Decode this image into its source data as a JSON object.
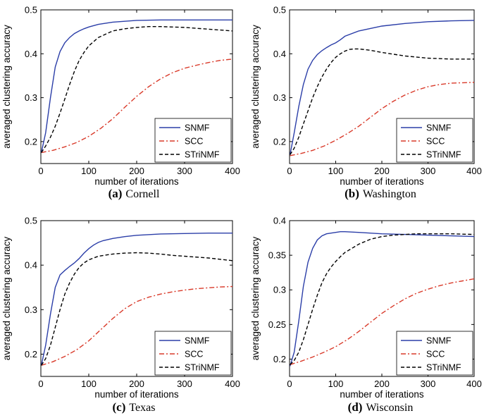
{
  "colors": {
    "SNMF": "#2b3ea8",
    "SCC": "#d93a2a",
    "STriNMF": "#000000"
  },
  "chart_data": [
    {
      "type": "line",
      "caption_letter": "(a)",
      "caption_name": "Cornell",
      "xlabel": "number of iterations",
      "ylabel": "averaged clustering accuracy",
      "xlim": [
        0,
        400
      ],
      "ylim": [
        0.15,
        0.5
      ],
      "xticks": [
        "0",
        "100",
        "200",
        "300",
        "400"
      ],
      "yticks": [
        "0.2",
        "0.3",
        "0.4",
        "0.5"
      ],
      "ytick_values": [
        0.2,
        0.3,
        0.4,
        0.5
      ],
      "legend_position": "bottom-right",
      "series": [
        {
          "name": "SNMF",
          "style": "solid",
          "x": [
            1,
            10,
            20,
            30,
            40,
            50,
            60,
            70,
            80,
            90,
            100,
            120,
            150,
            200,
            250,
            300,
            350,
            400
          ],
          "y": [
            0.175,
            0.22,
            0.3,
            0.37,
            0.405,
            0.425,
            0.437,
            0.446,
            0.452,
            0.457,
            0.461,
            0.467,
            0.472,
            0.476,
            0.477,
            0.477,
            0.477,
            0.477
          ]
        },
        {
          "name": "SCC",
          "style": "dashdot",
          "x": [
            1,
            25,
            50,
            75,
            100,
            125,
            150,
            175,
            200,
            225,
            250,
            275,
            300,
            325,
            350,
            375,
            400
          ],
          "y": [
            0.175,
            0.18,
            0.188,
            0.198,
            0.212,
            0.23,
            0.252,
            0.278,
            0.303,
            0.325,
            0.343,
            0.357,
            0.367,
            0.374,
            0.38,
            0.385,
            0.388
          ]
        },
        {
          "name": "STriNMF",
          "style": "dashed",
          "x": [
            1,
            10,
            20,
            30,
            40,
            50,
            60,
            70,
            80,
            90,
            100,
            120,
            150,
            175,
            200,
            225,
            250,
            275,
            300,
            350,
            400
          ],
          "y": [
            0.175,
            0.19,
            0.21,
            0.235,
            0.265,
            0.297,
            0.33,
            0.36,
            0.385,
            0.403,
            0.418,
            0.437,
            0.452,
            0.457,
            0.46,
            0.462,
            0.462,
            0.461,
            0.46,
            0.456,
            0.452
          ]
        }
      ]
    },
    {
      "type": "line",
      "caption_letter": "(b)",
      "caption_name": "Washington",
      "xlabel": "number of iterations",
      "ylabel": "averaged clustering accuracy",
      "xlim": [
        0,
        400
      ],
      "ylim": [
        0.15,
        0.5
      ],
      "xticks": [
        "0",
        "100",
        "200",
        "300",
        "400"
      ],
      "yticks": [
        "0.2",
        "0.3",
        "0.4",
        "0.5"
      ],
      "ytick_values": [
        0.2,
        0.3,
        0.4,
        0.5
      ],
      "legend_position": "bottom-right",
      "series": [
        {
          "name": "SNMF",
          "style": "solid",
          "x": [
            1,
            10,
            20,
            30,
            40,
            50,
            60,
            70,
            80,
            90,
            100,
            110,
            120,
            150,
            200,
            250,
            300,
            350,
            400
          ],
          "y": [
            0.17,
            0.22,
            0.28,
            0.33,
            0.365,
            0.385,
            0.398,
            0.407,
            0.414,
            0.42,
            0.425,
            0.432,
            0.44,
            0.452,
            0.463,
            0.469,
            0.473,
            0.475,
            0.476
          ]
        },
        {
          "name": "SCC",
          "style": "dashdot",
          "x": [
            1,
            25,
            50,
            75,
            100,
            125,
            150,
            175,
            200,
            225,
            250,
            275,
            300,
            325,
            350,
            375,
            400
          ],
          "y": [
            0.168,
            0.173,
            0.18,
            0.19,
            0.203,
            0.218,
            0.235,
            0.255,
            0.275,
            0.292,
            0.306,
            0.317,
            0.325,
            0.33,
            0.333,
            0.334,
            0.335
          ]
        },
        {
          "name": "STriNMF",
          "style": "dashed",
          "x": [
            1,
            10,
            20,
            30,
            40,
            50,
            60,
            70,
            80,
            90,
            100,
            110,
            120,
            130,
            140,
            150,
            175,
            200,
            250,
            300,
            350,
            400
          ],
          "y": [
            0.17,
            0.185,
            0.21,
            0.24,
            0.27,
            0.3,
            0.325,
            0.347,
            0.365,
            0.38,
            0.392,
            0.4,
            0.406,
            0.41,
            0.411,
            0.411,
            0.408,
            0.403,
            0.395,
            0.39,
            0.388,
            0.388
          ]
        }
      ]
    },
    {
      "type": "line",
      "caption_letter": "(c)",
      "caption_name": "Texas",
      "xlabel": "number of iterations",
      "ylabel": "averaged clustering accuracy",
      "xlim": [
        0,
        400
      ],
      "ylim": [
        0.15,
        0.5
      ],
      "xticks": [
        "0",
        "100",
        "200",
        "300",
        "400"
      ],
      "yticks": [
        "0.2",
        "0.3",
        "0.4",
        "0.5"
      ],
      "ytick_values": [
        0.2,
        0.3,
        0.4,
        0.5
      ],
      "legend_position": "bottom-right",
      "series": [
        {
          "name": "SNMF",
          "style": "solid",
          "x": [
            1,
            10,
            20,
            30,
            40,
            50,
            60,
            70,
            80,
            90,
            100,
            110,
            120,
            130,
            150,
            175,
            200,
            250,
            300,
            350,
            400
          ],
          "y": [
            0.175,
            0.22,
            0.29,
            0.35,
            0.378,
            0.388,
            0.397,
            0.405,
            0.415,
            0.427,
            0.437,
            0.445,
            0.451,
            0.455,
            0.46,
            0.464,
            0.467,
            0.47,
            0.471,
            0.472,
            0.472
          ]
        },
        {
          "name": "SCC",
          "style": "dashdot",
          "x": [
            1,
            25,
            50,
            75,
            100,
            125,
            150,
            175,
            200,
            225,
            250,
            275,
            300,
            325,
            350,
            375,
            400
          ],
          "y": [
            0.175,
            0.183,
            0.195,
            0.21,
            0.23,
            0.255,
            0.28,
            0.302,
            0.318,
            0.328,
            0.335,
            0.34,
            0.344,
            0.347,
            0.349,
            0.351,
            0.352
          ]
        },
        {
          "name": "STriNMF",
          "style": "dashed",
          "x": [
            1,
            10,
            20,
            30,
            40,
            50,
            60,
            70,
            80,
            90,
            100,
            120,
            150,
            175,
            200,
            225,
            250,
            275,
            300,
            350,
            400
          ],
          "y": [
            0.175,
            0.19,
            0.22,
            0.26,
            0.3,
            0.335,
            0.36,
            0.38,
            0.395,
            0.405,
            0.412,
            0.42,
            0.425,
            0.427,
            0.428,
            0.427,
            0.425,
            0.422,
            0.42,
            0.416,
            0.41
          ]
        }
      ]
    },
    {
      "type": "line",
      "caption_letter": "(d)",
      "caption_name": "Wisconsin",
      "xlabel": "number of iterations",
      "ylabel": "averaged clustering accuracy",
      "xlim": [
        0,
        400
      ],
      "ylim": [
        0.175,
        0.4
      ],
      "xticks": [
        "0",
        "100",
        "200",
        "300",
        "400"
      ],
      "yticks": [
        "0.2",
        "0.25",
        "0.3",
        "0.35",
        "0.4"
      ],
      "ytick_values": [
        0.2,
        0.25,
        0.3,
        0.35,
        0.4
      ],
      "legend_position": "bottom-right",
      "series": [
        {
          "name": "SNMF",
          "style": "solid",
          "x": [
            1,
            10,
            20,
            30,
            40,
            50,
            60,
            70,
            80,
            90,
            100,
            110,
            120,
            150,
            200,
            250,
            300,
            350,
            400
          ],
          "y": [
            0.19,
            0.21,
            0.255,
            0.305,
            0.34,
            0.36,
            0.372,
            0.378,
            0.381,
            0.382,
            0.383,
            0.384,
            0.384,
            0.383,
            0.381,
            0.38,
            0.379,
            0.378,
            0.377
          ]
        },
        {
          "name": "SCC",
          "style": "dashdot",
          "x": [
            1,
            25,
            50,
            75,
            100,
            125,
            150,
            175,
            200,
            225,
            250,
            275,
            300,
            325,
            350,
            375,
            400
          ],
          "y": [
            0.192,
            0.197,
            0.203,
            0.21,
            0.218,
            0.228,
            0.24,
            0.253,
            0.266,
            0.277,
            0.287,
            0.295,
            0.301,
            0.306,
            0.31,
            0.313,
            0.316
          ]
        },
        {
          "name": "STriNMF",
          "style": "dashed",
          "x": [
            1,
            10,
            20,
            30,
            40,
            50,
            60,
            70,
            80,
            90,
            100,
            110,
            120,
            150,
            175,
            200,
            225,
            250,
            275,
            300,
            350,
            400
          ],
          "y": [
            0.192,
            0.198,
            0.21,
            0.228,
            0.25,
            0.272,
            0.292,
            0.31,
            0.323,
            0.333,
            0.341,
            0.348,
            0.354,
            0.366,
            0.373,
            0.377,
            0.379,
            0.38,
            0.381,
            0.381,
            0.381,
            0.38
          ]
        }
      ]
    }
  ]
}
